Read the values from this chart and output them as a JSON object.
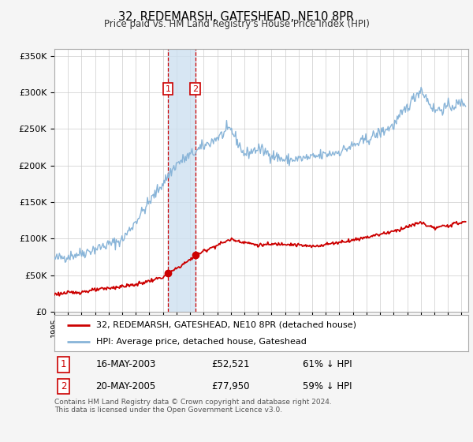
{
  "title": "32, REDEMARSH, GATESHEAD, NE10 8PR",
  "subtitle": "Price paid vs. HM Land Registry's House Price Index (HPI)",
  "legend_line1": "32, REDEMARSH, GATESHEAD, NE10 8PR (detached house)",
  "legend_line2": "HPI: Average price, detached house, Gateshead",
  "red_color": "#cc0000",
  "blue_color": "#88b4d8",
  "sale1_date": 2003.37,
  "sale1_price": 52521,
  "sale1_label": "1",
  "sale1_date_str": "16-MAY-2003",
  "sale1_price_str": "£52,521",
  "sale1_hpi": "61% ↓ HPI",
  "sale2_date": 2005.38,
  "sale2_price": 77950,
  "sale2_label": "2",
  "sale2_date_str": "20-MAY-2005",
  "sale2_price_str": "£77,950",
  "sale2_hpi": "59% ↓ HPI",
  "xmin": 1995,
  "xmax": 2025.5,
  "ymin": 0,
  "ymax": 350000,
  "yticks": [
    0,
    50000,
    100000,
    150000,
    200000,
    250000,
    300000,
    350000
  ],
  "ytick_labels": [
    "£0",
    "£50K",
    "£100K",
    "£150K",
    "£200K",
    "£250K",
    "£300K",
    "£350K"
  ],
  "footnote1": "Contains HM Land Registry data © Crown copyright and database right 2024.",
  "footnote2": "This data is licensed under the Open Government Licence v3.0.",
  "background_color": "#f5f5f5",
  "plot_bg_color": "#ffffff",
  "span_color": "#cde0f0"
}
